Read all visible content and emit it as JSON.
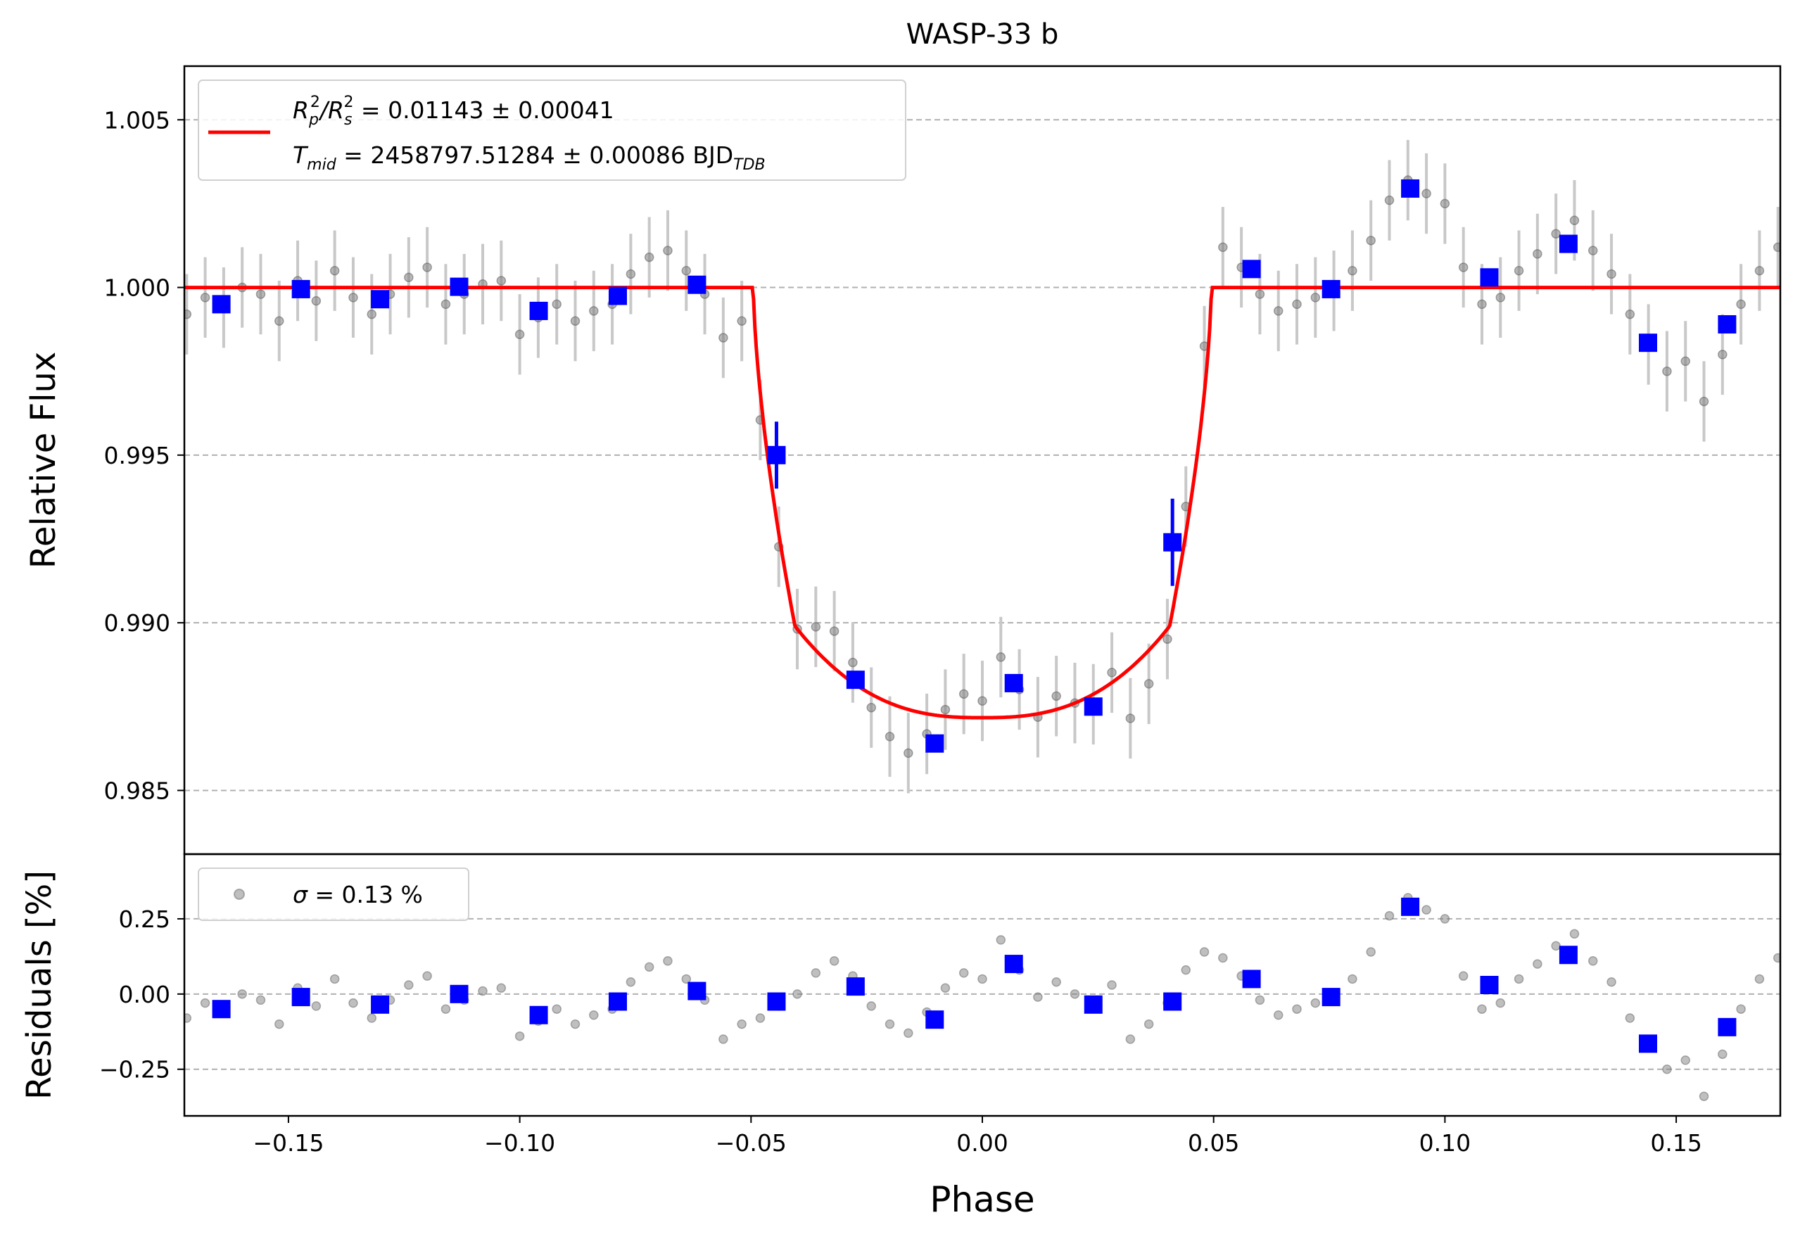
{
  "chart_data": {
    "type": "scatter",
    "title": "WASP-33 b",
    "xlabel": "Phase",
    "xlim": [
      -0.1725,
      0.1725
    ],
    "xticks": [
      -0.15,
      -0.1,
      -0.05,
      0.0,
      0.05,
      0.1,
      0.15
    ],
    "xtick_labels": [
      "−0.15",
      "−0.10",
      "−0.05",
      "0.00",
      "0.05",
      "0.10",
      "0.15"
    ],
    "grid": "horizontal dashed",
    "colors": {
      "model": "#ff0000",
      "binned": "#0000ff",
      "raw": "#808080",
      "errorbar": "#c8c8c8"
    },
    "top_panel": {
      "ylabel": "Relative Flux",
      "ylim": [
        0.9831,
        1.0066
      ],
      "yticks": [
        0.985,
        0.99,
        0.995,
        1.0,
        1.005
      ],
      "ytick_labels": [
        "0.985",
        "0.990",
        "0.995",
        "1.000",
        "1.005"
      ],
      "legend": {
        "placement": "top-left",
        "line1": {
          "main": "R",
          "sub1": "p",
          "sup1": "2",
          "slash": "/R",
          "sub2": "s",
          "sup2": "2",
          "value": " = 0.01143 ± 0.00041"
        },
        "line2": {
          "main": "T",
          "sub": "mid",
          "value": " = 2458797.51284 ± 0.00086 BJD",
          "unit_sub": "TDB"
        }
      },
      "model_params": {
        "depth": 0.01143,
        "t14_half": 0.0495,
        "t23_half": 0.0405,
        "bottom_flux": 0.98717
      },
      "binned": {
        "phase": [
          -0.1645,
          -0.1473,
          -0.1302,
          -0.1131,
          -0.0959,
          -0.0788,
          -0.0617,
          -0.0445,
          -0.0274,
          -0.0103,
          0.0068,
          0.024,
          0.0411,
          0.0582,
          0.0754,
          0.0925,
          0.1096,
          0.1267,
          0.1439,
          0.161
        ],
        "flux": [
          0.9995,
          0.99995,
          0.99965,
          1.00002,
          0.9993,
          0.99975,
          1.00008,
          0.995,
          0.9883,
          0.9864,
          0.9882,
          0.9875,
          0.9924,
          1.00055,
          0.99995,
          1.00295,
          1.0003,
          1.0013,
          0.99835,
          0.9989
        ],
        "err": [
          0.0002,
          0.0002,
          0.0002,
          0.0002,
          0.0002,
          0.0002,
          0.0002,
          0.001,
          0.0002,
          0.0002,
          0.0002,
          0.0002,
          0.0013,
          0.0002,
          0.0002,
          0.0002,
          0.0002,
          0.0002,
          0.0002,
          0.0002
        ]
      }
    },
    "bottom_panel": {
      "ylabel": "Residuals [%]",
      "ylim": [
        -0.405,
        0.465
      ],
      "yticks": [
        -0.25,
        0.0,
        0.25
      ],
      "ytick_labels": [
        "−0.25",
        "0.00",
        "0.25"
      ],
      "legend": {
        "placement": "top-left",
        "symbol": "σ",
        "value": " = 0.13 %"
      },
      "binned_residuals": [
        -0.05,
        -0.01,
        -0.035,
        0.0,
        -0.07,
        -0.025,
        0.01,
        -0.025,
        0.025,
        -0.085,
        0.1,
        -0.035,
        -0.025,
        0.05,
        -0.01,
        0.29,
        0.03,
        0.13,
        -0.165,
        -0.11
      ],
      "raw": {
        "phase": [
          -0.172,
          -0.168,
          -0.164,
          -0.16,
          -0.156,
          -0.152,
          -0.148,
          -0.144,
          -0.14,
          -0.136,
          -0.132,
          -0.128,
          -0.124,
          -0.12,
          -0.116,
          -0.112,
          -0.108,
          -0.104,
          -0.1,
          -0.096,
          -0.092,
          -0.088,
          -0.084,
          -0.08,
          -0.076,
          -0.072,
          -0.068,
          -0.064,
          -0.06,
          -0.056,
          -0.052,
          -0.048,
          -0.044,
          -0.04,
          -0.036,
          -0.032,
          -0.028,
          -0.024,
          -0.02,
          -0.016,
          -0.012,
          -0.008,
          -0.004,
          0.0,
          0.004,
          0.008,
          0.012,
          0.016,
          0.02,
          0.024,
          0.028,
          0.032,
          0.036,
          0.04,
          0.044,
          0.048,
          0.052,
          0.056,
          0.06,
          0.064,
          0.068,
          0.072,
          0.076,
          0.08,
          0.084,
          0.088,
          0.092,
          0.096,
          0.1,
          0.104,
          0.108,
          0.112,
          0.116,
          0.12,
          0.124,
          0.128,
          0.132,
          0.136,
          0.14,
          0.144,
          0.148,
          0.152,
          0.156,
          0.16,
          0.164,
          0.168,
          0.172
        ],
        "residual": [
          -0.08,
          -0.03,
          -0.06,
          0.0,
          -0.02,
          -0.1,
          0.02,
          -0.04,
          0.05,
          -0.03,
          -0.08,
          -0.02,
          0.03,
          0.06,
          -0.05,
          -0.02,
          0.01,
          0.02,
          -0.14,
          -0.09,
          -0.05,
          -0.1,
          -0.07,
          -0.05,
          0.04,
          0.09,
          0.11,
          0.05,
          -0.02,
          -0.15,
          -0.1,
          -0.08,
          -0.04,
          0.0,
          0.07,
          0.11,
          0.06,
          -0.04,
          -0.1,
          -0.13,
          -0.06,
          0.02,
          0.07,
          0.05,
          0.18,
          0.08,
          -0.01,
          0.04,
          0.0,
          -0.03,
          0.03,
          -0.15,
          -0.1,
          -0.03,
          0.08,
          0.14,
          0.12,
          0.06,
          -0.02,
          -0.07,
          -0.05,
          -0.03,
          -0.01,
          0.05,
          0.14,
          0.26,
          0.32,
          0.28,
          0.25,
          0.06,
          -0.05,
          -0.03,
          0.05,
          0.1,
          0.16,
          0.2,
          0.11,
          0.04,
          -0.08,
          -0.17,
          -0.25,
          -0.22,
          -0.34,
          -0.2,
          -0.05,
          0.05,
          0.12
        ]
      }
    }
  }
}
